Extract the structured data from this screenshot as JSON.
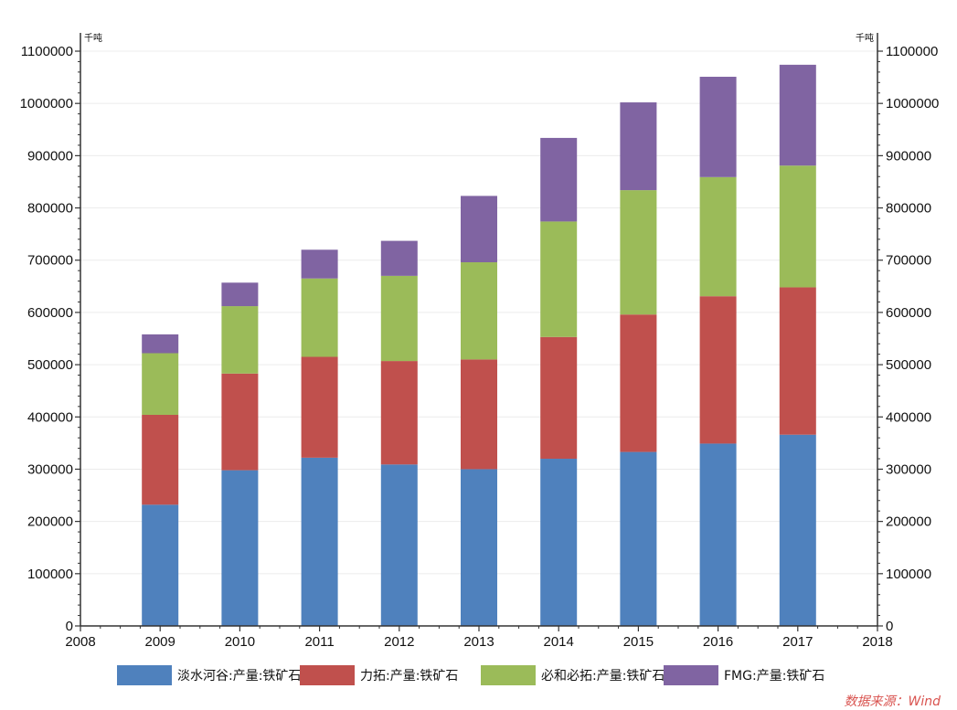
{
  "chart_data": {
    "type": "bar",
    "stacked": true,
    "categories": [
      "2009",
      "2010",
      "2011",
      "2012",
      "2013",
      "2014",
      "2015",
      "2016",
      "2017"
    ],
    "x_axis_ticks": [
      "2008",
      "2009",
      "2010",
      "2011",
      "2012",
      "2013",
      "2014",
      "2015",
      "2016",
      "2017",
      "2018"
    ],
    "y_axis_ticks": [
      "0",
      "100000",
      "200000",
      "300000",
      "400000",
      "500000",
      "600000",
      "700000",
      "800000",
      "900000",
      "1000000",
      "1100000"
    ],
    "ylim": [
      0,
      1100000
    ],
    "y_unit_left": "千吨",
    "y_unit_right": "千吨",
    "grid": true,
    "legend_position": "bottom",
    "series": [
      {
        "name": "淡水河谷:产量:铁矿石",
        "color": "#4f81bd",
        "values": [
          232000,
          298000,
          322000,
          309000,
          300000,
          320000,
          333000,
          349000,
          366000
        ]
      },
      {
        "name": "力拓:产量:铁矿石",
        "color": "#c0504d",
        "values": [
          172000,
          185000,
          193000,
          198000,
          210000,
          233000,
          263000,
          282000,
          282000
        ]
      },
      {
        "name": "必和必拓:产量:铁矿石",
        "color": "#9bbb59",
        "values": [
          118000,
          129000,
          150000,
          163000,
          186000,
          221000,
          238000,
          228000,
          233000
        ]
      },
      {
        "name": "FMG:产量:铁矿石",
        "color": "#8064a2",
        "values": [
          36000,
          45000,
          55000,
          67000,
          127000,
          160000,
          168000,
          192000,
          193000
        ]
      }
    ]
  },
  "source_text": "数据来源：Wind"
}
